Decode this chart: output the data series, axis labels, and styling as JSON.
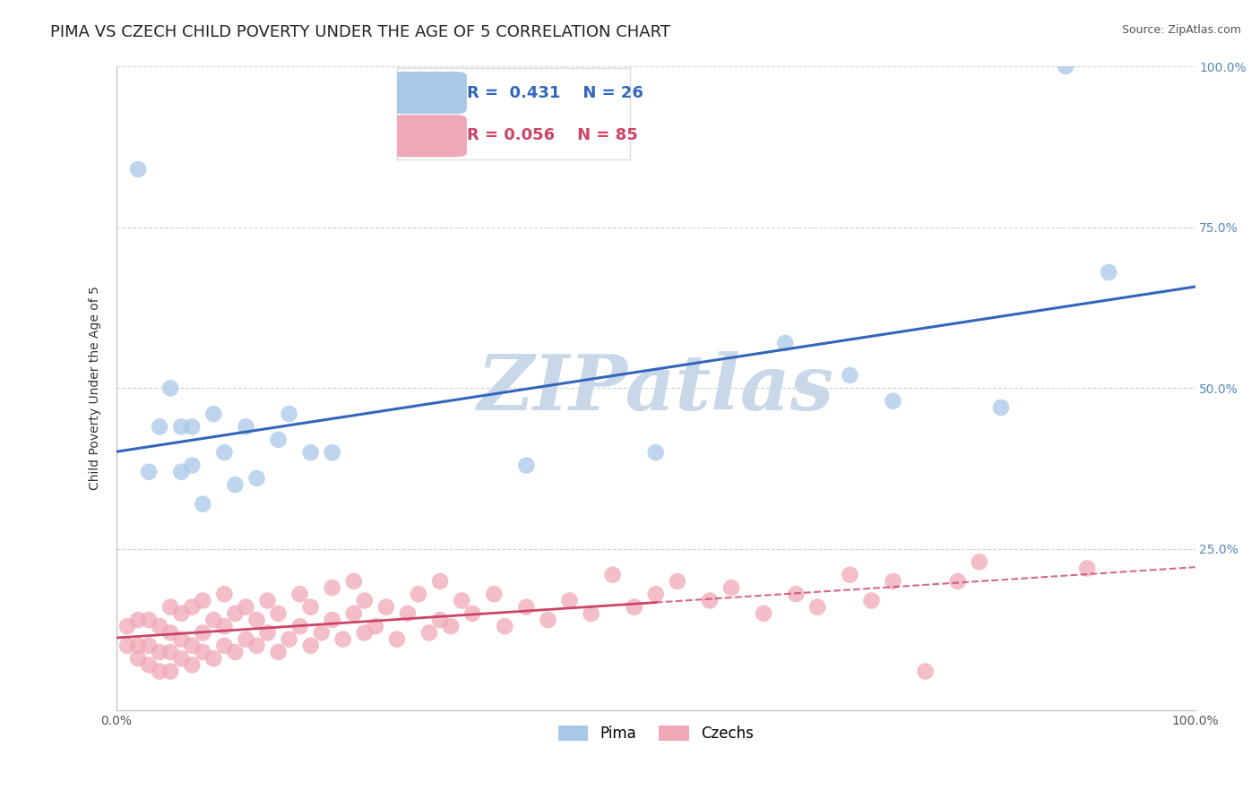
{
  "title": "PIMA VS CZECH CHILD POVERTY UNDER THE AGE OF 5 CORRELATION CHART",
  "source": "Source: ZipAtlas.com",
  "ylabel": "Child Poverty Under the Age of 5",
  "xlim": [
    0,
    1
  ],
  "ylim": [
    0,
    1
  ],
  "ytick_vals": [
    0.25,
    0.5,
    0.75,
    1.0
  ],
  "xtick_vals": [
    0.0,
    1.0
  ],
  "pima_color": "#a8c8e8",
  "czech_color": "#f0a8b8",
  "pima_line_color": "#3366bb",
  "czech_line_color": "#cc4466",
  "legend_pima_R": "0.431",
  "legend_pima_N": "26",
  "legend_czech_R": "0.056",
  "legend_czech_N": "85",
  "pima_x": [
    0.02,
    0.03,
    0.04,
    0.05,
    0.06,
    0.06,
    0.07,
    0.07,
    0.08,
    0.09,
    0.1,
    0.11,
    0.12,
    0.13,
    0.15,
    0.16,
    0.18,
    0.2,
    0.38,
    0.5,
    0.62,
    0.68,
    0.72,
    0.82,
    0.88,
    0.92
  ],
  "pima_y": [
    0.84,
    0.37,
    0.44,
    0.5,
    0.37,
    0.44,
    0.38,
    0.44,
    0.32,
    0.46,
    0.4,
    0.35,
    0.44,
    0.36,
    0.42,
    0.46,
    0.4,
    0.4,
    0.38,
    0.4,
    0.57,
    0.52,
    0.48,
    0.47,
    1.0,
    0.68
  ],
  "czech_x": [
    0.01,
    0.01,
    0.02,
    0.02,
    0.02,
    0.03,
    0.03,
    0.03,
    0.04,
    0.04,
    0.04,
    0.05,
    0.05,
    0.05,
    0.05,
    0.06,
    0.06,
    0.06,
    0.07,
    0.07,
    0.07,
    0.08,
    0.08,
    0.08,
    0.09,
    0.09,
    0.1,
    0.1,
    0.1,
    0.11,
    0.11,
    0.12,
    0.12,
    0.13,
    0.13,
    0.14,
    0.14,
    0.15,
    0.15,
    0.16,
    0.17,
    0.17,
    0.18,
    0.18,
    0.19,
    0.2,
    0.2,
    0.21,
    0.22,
    0.22,
    0.23,
    0.23,
    0.24,
    0.25,
    0.26,
    0.27,
    0.28,
    0.29,
    0.3,
    0.3,
    0.31,
    0.32,
    0.33,
    0.35,
    0.36,
    0.38,
    0.4,
    0.42,
    0.44,
    0.46,
    0.48,
    0.5,
    0.52,
    0.55,
    0.57,
    0.6,
    0.63,
    0.65,
    0.68,
    0.7,
    0.72,
    0.75,
    0.78,
    0.8,
    0.9
  ],
  "czech_y": [
    0.1,
    0.13,
    0.08,
    0.1,
    0.14,
    0.07,
    0.1,
    0.14,
    0.06,
    0.09,
    0.13,
    0.06,
    0.09,
    0.12,
    0.16,
    0.08,
    0.11,
    0.15,
    0.07,
    0.1,
    0.16,
    0.09,
    0.12,
    0.17,
    0.08,
    0.14,
    0.1,
    0.13,
    0.18,
    0.09,
    0.15,
    0.11,
    0.16,
    0.1,
    0.14,
    0.12,
    0.17,
    0.09,
    0.15,
    0.11,
    0.13,
    0.18,
    0.1,
    0.16,
    0.12,
    0.14,
    0.19,
    0.11,
    0.15,
    0.2,
    0.12,
    0.17,
    0.13,
    0.16,
    0.11,
    0.15,
    0.18,
    0.12,
    0.14,
    0.2,
    0.13,
    0.17,
    0.15,
    0.18,
    0.13,
    0.16,
    0.14,
    0.17,
    0.15,
    0.21,
    0.16,
    0.18,
    0.2,
    0.17,
    0.19,
    0.15,
    0.18,
    0.16,
    0.21,
    0.17,
    0.2,
    0.06,
    0.2,
    0.23,
    0.22
  ],
  "watermark": "ZIPatlas",
  "watermark_color": "#c8d8e8",
  "background_color": "#ffffff",
  "grid_color": "#cccccc",
  "title_fontsize": 13,
  "axis_label_fontsize": 10,
  "tick_fontsize": 10,
  "legend_fontsize": 13,
  "pima_label": "Pima",
  "czech_label": "Czechs"
}
